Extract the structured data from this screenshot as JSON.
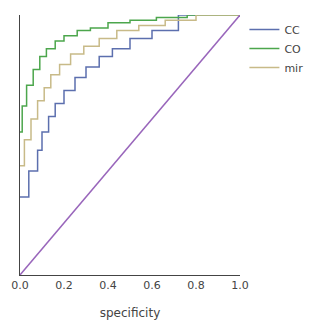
{
  "chart_data": {
    "type": "line",
    "xlabel": "specificity",
    "xlim": [
      0,
      1.0
    ],
    "ylim": [
      0,
      1.0
    ],
    "xticks": [
      {
        "value": 0.0,
        "label": "0.0"
      },
      0.2,
      0.4,
      0.6,
      0.8,
      {
        "value": 1.0,
        "label": "1.0"
      }
    ],
    "tick_labels": "x",
    "grid": false,
    "legend": "right",
    "series": [
      {
        "name": "CC",
        "color": "#5c6fae",
        "x": [
          0.0,
          0.04,
          0.04,
          0.08,
          0.08,
          0.1,
          0.1,
          0.13,
          0.13,
          0.16,
          0.16,
          0.2,
          0.2,
          0.25,
          0.25,
          0.3,
          0.3,
          0.36,
          0.36,
          0.42,
          0.42,
          0.5,
          0.5,
          0.6,
          0.6,
          0.72,
          0.72,
          1.0
        ],
        "values": [
          0.3,
          0.3,
          0.4,
          0.4,
          0.48,
          0.48,
          0.55,
          0.55,
          0.61,
          0.61,
          0.66,
          0.66,
          0.71,
          0.71,
          0.76,
          0.76,
          0.8,
          0.8,
          0.84,
          0.84,
          0.87,
          0.87,
          0.91,
          0.91,
          0.94,
          0.94,
          1.0,
          1.0
        ]
      },
      {
        "name": "CO",
        "color": "#4ca64c",
        "x": [
          0.0,
          0.01,
          0.01,
          0.03,
          0.03,
          0.06,
          0.06,
          0.09,
          0.09,
          0.12,
          0.12,
          0.16,
          0.16,
          0.2,
          0.2,
          0.26,
          0.26,
          0.32,
          0.32,
          0.4,
          0.4,
          0.5,
          0.5,
          0.62,
          0.62,
          0.76,
          0.76,
          1.0
        ],
        "values": [
          0.55,
          0.55,
          0.65,
          0.65,
          0.73,
          0.73,
          0.79,
          0.79,
          0.84,
          0.84,
          0.87,
          0.87,
          0.9,
          0.9,
          0.92,
          0.92,
          0.94,
          0.94,
          0.95,
          0.95,
          0.97,
          0.97,
          0.98,
          0.98,
          0.99,
          0.99,
          1.0,
          1.0
        ]
      },
      {
        "name": "mir",
        "color": "#c8ba88",
        "x": [
          0.0,
          0.02,
          0.02,
          0.05,
          0.05,
          0.08,
          0.08,
          0.11,
          0.11,
          0.14,
          0.14,
          0.18,
          0.18,
          0.23,
          0.23,
          0.29,
          0.29,
          0.36,
          0.36,
          0.44,
          0.44,
          0.54,
          0.54,
          0.66,
          0.66,
          0.8,
          0.8,
          1.0
        ],
        "values": [
          0.42,
          0.42,
          0.52,
          0.52,
          0.6,
          0.6,
          0.67,
          0.67,
          0.72,
          0.72,
          0.77,
          0.77,
          0.81,
          0.81,
          0.85,
          0.85,
          0.88,
          0.88,
          0.91,
          0.91,
          0.94,
          0.94,
          0.96,
          0.96,
          0.98,
          0.98,
          1.0,
          1.0
        ]
      },
      {
        "color": "#9966bb",
        "x": [
          0,
          1
        ],
        "values": [
          0,
          1
        ]
      }
    ]
  }
}
